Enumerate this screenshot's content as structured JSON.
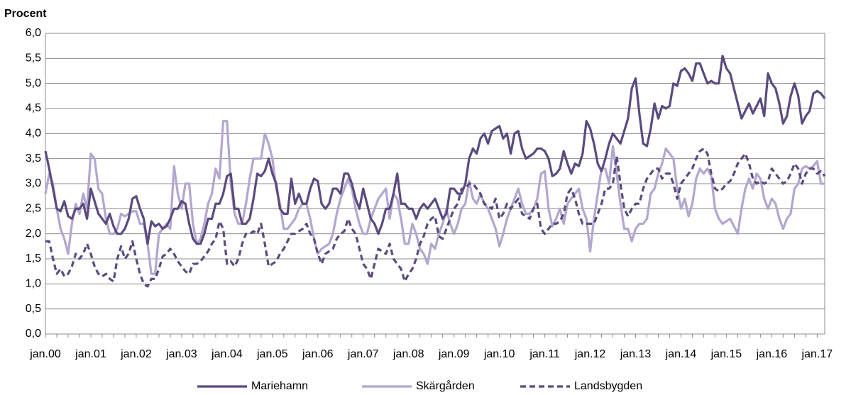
{
  "chart_data": {
    "type": "line",
    "title": "Procent",
    "categories": [
      "jan.00",
      null,
      null,
      null,
      null,
      null,
      null,
      null,
      null,
      null,
      null,
      null,
      "jan.01",
      null,
      null,
      null,
      null,
      null,
      null,
      null,
      null,
      null,
      null,
      null,
      "jan.02",
      null,
      null,
      null,
      null,
      null,
      null,
      null,
      null,
      null,
      null,
      null,
      "jan.03",
      null,
      null,
      null,
      null,
      null,
      null,
      null,
      null,
      null,
      null,
      null,
      "jan.04",
      null,
      null,
      null,
      null,
      null,
      null,
      null,
      null,
      null,
      null,
      null,
      "jan.05",
      null,
      null,
      null,
      null,
      null,
      null,
      null,
      null,
      null,
      null,
      null,
      "jan.06",
      null,
      null,
      null,
      null,
      null,
      null,
      null,
      null,
      null,
      null,
      null,
      "jan.07",
      null,
      null,
      null,
      null,
      null,
      null,
      null,
      null,
      null,
      null,
      null,
      "jan.08",
      null,
      null,
      null,
      null,
      null,
      null,
      null,
      null,
      null,
      null,
      null,
      "jan.09",
      null,
      null,
      null,
      null,
      null,
      null,
      null,
      null,
      null,
      null,
      null,
      "jan.10",
      null,
      null,
      null,
      null,
      null,
      null,
      null,
      null,
      null,
      null,
      null,
      "jan.11",
      null,
      null,
      null,
      null,
      null,
      null,
      null,
      null,
      null,
      null,
      null,
      "jan.12",
      null,
      null,
      null,
      null,
      null,
      null,
      null,
      null,
      null,
      null,
      null,
      "jan.13",
      null,
      null,
      null,
      null,
      null,
      null,
      null,
      null,
      null,
      null,
      null,
      "jan.14",
      null,
      null,
      null,
      null,
      null,
      null,
      null,
      null,
      null,
      null,
      null,
      "jan.15",
      null,
      null,
      null,
      null,
      null,
      null,
      null,
      null,
      null,
      null,
      null,
      "jan.16",
      null,
      null,
      null,
      null,
      null,
      null,
      null,
      null,
      null,
      null,
      null,
      "jan.17",
      null,
      null
    ],
    "series": [
      {
        "name": "Mariehamn",
        "color": "#5b4a7f",
        "style": "solid",
        "values": [
          3.65,
          3.3,
          2.9,
          2.5,
          2.45,
          2.65,
          2.35,
          2.3,
          2.5,
          2.5,
          2.6,
          2.3,
          2.9,
          2.65,
          2.4,
          2.3,
          2.2,
          2.4,
          2.15,
          2.0,
          2.0,
          2.1,
          2.3,
          2.7,
          2.75,
          2.5,
          2.3,
          1.8,
          2.25,
          2.15,
          2.2,
          2.1,
          2.15,
          2.3,
          2.5,
          2.5,
          2.65,
          2.6,
          2.2,
          1.9,
          1.8,
          1.8,
          2.0,
          2.3,
          2.3,
          2.6,
          2.6,
          2.8,
          3.15,
          3.2,
          2.5,
          2.5,
          2.2,
          2.2,
          2.3,
          2.7,
          3.2,
          3.15,
          3.25,
          3.5,
          3.2,
          3.0,
          2.5,
          2.4,
          2.4,
          3.1,
          2.6,
          2.8,
          2.6,
          2.6,
          2.9,
          3.1,
          3.05,
          2.6,
          2.5,
          2.6,
          2.9,
          2.9,
          2.8,
          3.2,
          3.2,
          3.0,
          2.7,
          2.5,
          2.9,
          2.6,
          2.3,
          2.2,
          2.0,
          2.2,
          2.5,
          2.5,
          2.8,
          3.2,
          2.6,
          2.6,
          2.5,
          2.5,
          2.3,
          2.5,
          2.6,
          2.5,
          2.6,
          2.7,
          2.5,
          2.3,
          2.4,
          2.9,
          2.9,
          2.8,
          2.8,
          3.0,
          3.5,
          3.7,
          3.6,
          3.9,
          4.0,
          3.8,
          4.05,
          4.1,
          4.15,
          3.9,
          4.0,
          3.6,
          4.0,
          4.05,
          3.7,
          3.5,
          3.55,
          3.6,
          3.7,
          3.7,
          3.65,
          3.5,
          3.15,
          3.2,
          3.3,
          3.65,
          3.4,
          3.2,
          3.4,
          3.35,
          3.6,
          4.25,
          4.1,
          3.8,
          3.4,
          3.25,
          3.5,
          3.8,
          4.0,
          3.9,
          3.8,
          4.05,
          4.3,
          4.9,
          5.1,
          4.4,
          3.8,
          3.75,
          4.1,
          4.6,
          4.3,
          4.55,
          4.5,
          4.55,
          5.0,
          4.95,
          5.25,
          5.3,
          5.2,
          5.05,
          5.4,
          5.4,
          5.2,
          5.0,
          5.05,
          5.0,
          5.0,
          5.55,
          5.3,
          5.2,
          4.9,
          4.6,
          4.3,
          4.45,
          4.6,
          4.4,
          4.55,
          4.7,
          4.35,
          5.2,
          5.0,
          4.9,
          4.6,
          4.2,
          4.35,
          4.75,
          5.0,
          4.75,
          4.2,
          4.35,
          4.45,
          4.8,
          4.85,
          4.8,
          4.7
        ]
      },
      {
        "name": "Skärgården",
        "color": "#b3a6cf",
        "style": "solid",
        "values": [
          2.8,
          3.2,
          3.0,
          2.5,
          2.1,
          1.9,
          1.6,
          2.2,
          2.6,
          2.4,
          2.8,
          2.5,
          3.6,
          3.5,
          2.9,
          2.8,
          2.3,
          2.0,
          2.0,
          2.1,
          2.4,
          2.35,
          2.4,
          2.45,
          2.45,
          2.2,
          2.2,
          1.8,
          1.2,
          1.2,
          2.0,
          2.1,
          2.2,
          2.1,
          3.35,
          2.8,
          2.5,
          3.0,
          3.0,
          2.2,
          1.8,
          1.9,
          2.2,
          2.6,
          2.8,
          3.3,
          3.1,
          4.25,
          4.25,
          3.0,
          2.4,
          2.2,
          2.2,
          2.6,
          3.1,
          3.5,
          3.5,
          3.5,
          4.0,
          3.8,
          3.5,
          2.9,
          2.6,
          2.1,
          2.1,
          2.2,
          2.3,
          2.5,
          2.6,
          2.6,
          2.3,
          1.9,
          1.6,
          1.7,
          1.75,
          1.8,
          2.0,
          2.4,
          2.7,
          2.9,
          3.1,
          2.9,
          2.5,
          2.2,
          2.0,
          2.0,
          2.3,
          2.5,
          2.7,
          2.8,
          2.9,
          2.3,
          2.8,
          2.7,
          2.3,
          1.8,
          1.8,
          2.2,
          2.0,
          1.7,
          1.6,
          1.4,
          1.8,
          1.7,
          2.0,
          2.2,
          2.5,
          2.2,
          2.0,
          2.2,
          2.5,
          2.6,
          3.05,
          2.7,
          2.6,
          2.8,
          2.6,
          2.5,
          2.3,
          2.1,
          1.75,
          2.0,
          2.3,
          2.5,
          2.7,
          2.9,
          2.6,
          2.4,
          2.4,
          2.5,
          2.7,
          3.2,
          3.25,
          2.5,
          2.15,
          2.3,
          2.5,
          2.2,
          2.6,
          2.7,
          2.8,
          2.9,
          2.5,
          2.3,
          1.65,
          2.3,
          2.8,
          3.3,
          3.3,
          3.0,
          3.75,
          3.2,
          2.6,
          2.1,
          2.1,
          1.85,
          2.1,
          2.2,
          2.2,
          2.3,
          2.8,
          2.9,
          3.2,
          3.4,
          3.7,
          3.6,
          3.5,
          2.9,
          2.5,
          2.7,
          2.35,
          2.6,
          3.1,
          3.3,
          3.2,
          3.3,
          3.15,
          2.5,
          2.3,
          2.2,
          2.25,
          2.3,
          2.15,
          2.0,
          2.5,
          2.9,
          3.1,
          2.9,
          3.2,
          3.1,
          2.7,
          2.5,
          2.7,
          2.6,
          2.3,
          2.1,
          2.3,
          2.4,
          2.9,
          3.0,
          3.3,
          3.35,
          3.3,
          3.35,
          3.45,
          3.0,
          3.0
        ]
      },
      {
        "name": "Landsbygden",
        "color": "#5b4a7f",
        "style": "dashed",
        "values": [
          1.85,
          1.85,
          1.5,
          1.2,
          1.3,
          1.15,
          1.2,
          1.35,
          1.6,
          1.5,
          1.6,
          1.8,
          1.6,
          1.35,
          1.2,
          1.15,
          1.2,
          1.1,
          1.05,
          1.5,
          1.75,
          1.5,
          1.6,
          1.85,
          1.5,
          1.2,
          1.0,
          0.95,
          1.1,
          1.1,
          1.3,
          1.55,
          1.6,
          1.7,
          1.6,
          1.45,
          1.35,
          1.25,
          1.2,
          1.4,
          1.4,
          1.45,
          1.55,
          1.65,
          1.8,
          1.9,
          2.25,
          2.1,
          1.4,
          1.45,
          1.35,
          1.5,
          1.8,
          2.0,
          2.0,
          2.05,
          2.0,
          2.2,
          1.8,
          1.35,
          1.4,
          1.45,
          1.6,
          1.7,
          1.85,
          2.0,
          2.0,
          2.05,
          2.1,
          2.2,
          2.0,
          1.9,
          1.6,
          1.4,
          1.6,
          1.65,
          1.7,
          1.9,
          2.0,
          2.05,
          2.3,
          2.1,
          2.0,
          1.7,
          1.4,
          1.3,
          1.1,
          1.4,
          1.7,
          1.65,
          1.6,
          1.8,
          1.5,
          1.4,
          1.3,
          1.05,
          1.2,
          1.3,
          1.5,
          1.8,
          1.95,
          2.2,
          2.3,
          2.35,
          1.95,
          1.9,
          2.1,
          2.3,
          2.5,
          2.6,
          2.9,
          2.9,
          3.0,
          3.0,
          2.9,
          2.8,
          2.6,
          2.55,
          2.5,
          2.7,
          2.3,
          2.4,
          2.6,
          2.5,
          2.6,
          2.7,
          2.4,
          2.35,
          2.3,
          2.5,
          2.6,
          2.1,
          2.0,
          2.1,
          2.2,
          2.2,
          2.25,
          2.4,
          2.8,
          2.9,
          2.7,
          2.4,
          2.2,
          2.2,
          2.2,
          2.2,
          2.4,
          2.6,
          2.9,
          2.9,
          3.0,
          3.55,
          3.0,
          2.5,
          2.35,
          2.5,
          2.6,
          2.6,
          2.9,
          3.1,
          3.2,
          3.3,
          3.3,
          3.1,
          3.2,
          3.2,
          3.0,
          2.7,
          3.0,
          3.1,
          3.2,
          3.3,
          3.5,
          3.65,
          3.7,
          3.6,
          3.2,
          2.9,
          2.85,
          2.9,
          3.0,
          3.05,
          3.2,
          3.4,
          3.5,
          3.6,
          3.4,
          3.1,
          3.0,
          3.05,
          3.0,
          3.05,
          3.3,
          3.2,
          3.1,
          3.0,
          3.05,
          3.2,
          3.4,
          3.3,
          3.0,
          3.2,
          3.3,
          3.3,
          3.2,
          3.25,
          3.15
        ]
      }
    ],
    "ylim": [
      0,
      6
    ],
    "yticks": [
      {
        "value": 0,
        "label": "0,0"
      },
      {
        "value": 0.5,
        "label": "0,5"
      },
      {
        "value": 1,
        "label": "1,0"
      },
      {
        "value": 1.5,
        "label": "1,5"
      },
      {
        "value": 2,
        "label": "2,0"
      },
      {
        "value": 2.5,
        "label": "2,5"
      },
      {
        "value": 3,
        "label": "3,0"
      },
      {
        "value": 3.5,
        "label": "3,5"
      },
      {
        "value": 4,
        "label": "4,0"
      },
      {
        "value": 4.5,
        "label": "4,5"
      },
      {
        "value": 5,
        "label": "5,0"
      },
      {
        "value": 5.5,
        "label": "5,5"
      },
      {
        "value": 6,
        "label": "6,0"
      }
    ],
    "grid": true,
    "legend": "bottom"
  }
}
